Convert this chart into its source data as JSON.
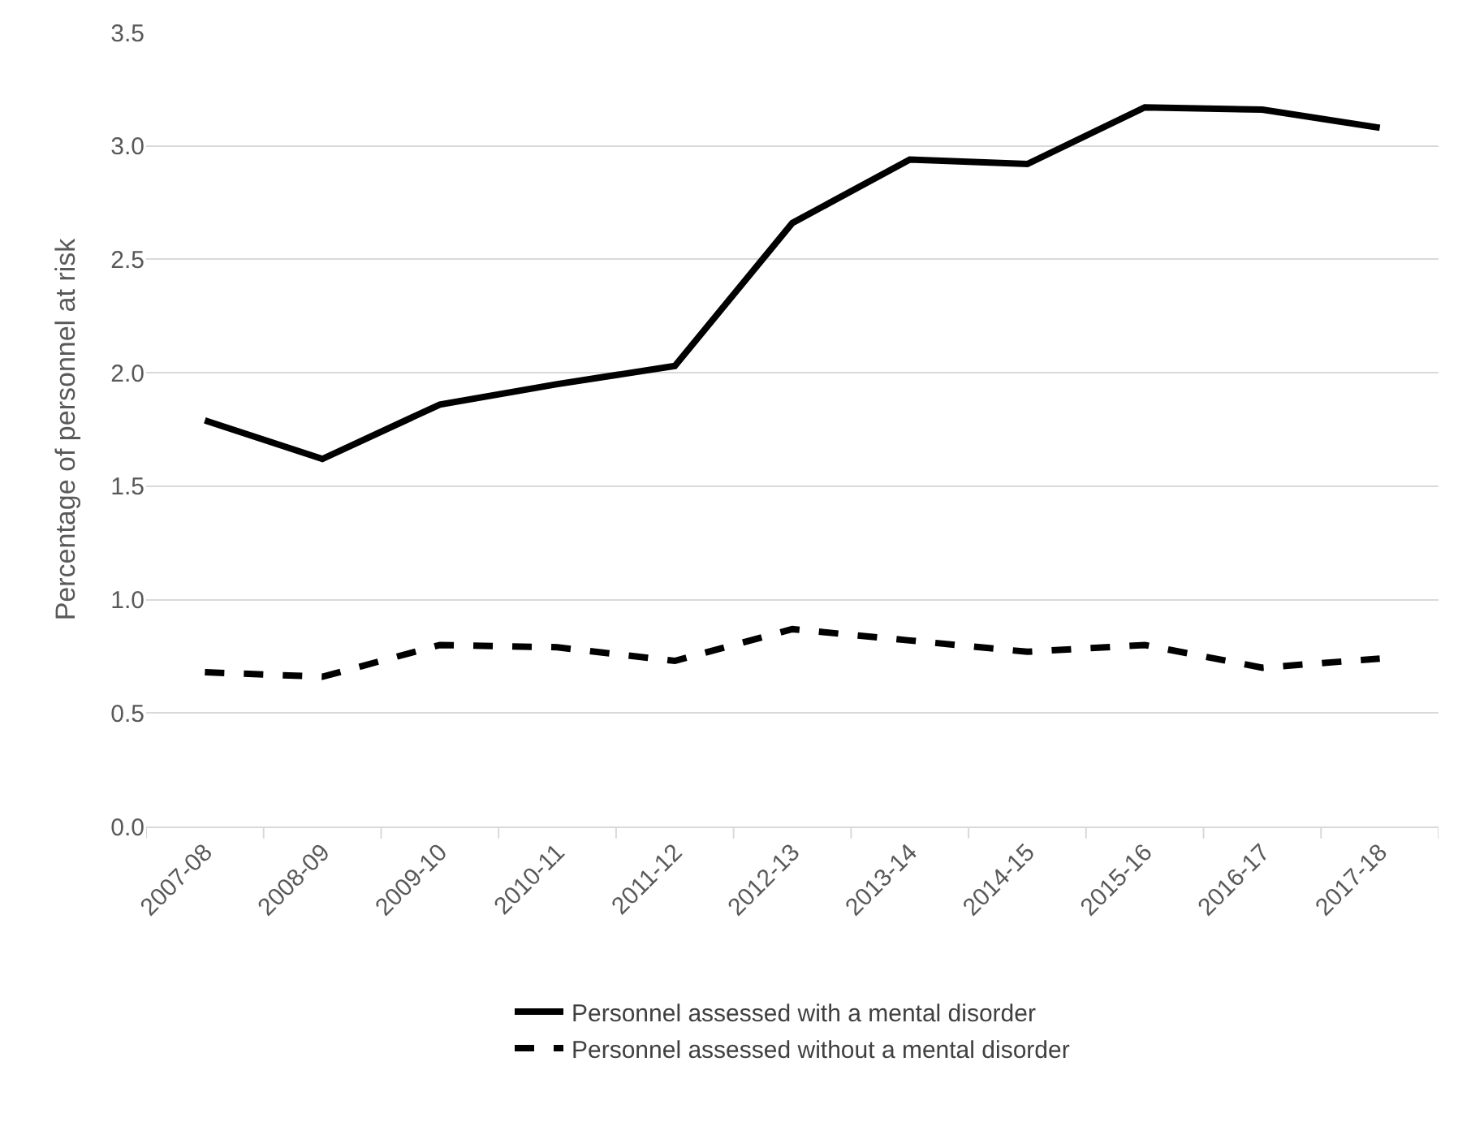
{
  "chart_data": {
    "type": "line",
    "ylabel": "Percentage of personnel at risk",
    "categories": [
      "2007-08",
      "2008-09",
      "2009-10",
      "2010-11",
      "2011-12",
      "2012-13",
      "2013-14",
      "2014-15",
      "2015-16",
      "2016-17",
      "2017-18"
    ],
    "series": [
      {
        "name": "Personnel assessed with a mental disorder",
        "color": "#000000",
        "line_style": "solid",
        "values": [
          1.79,
          1.62,
          1.86,
          1.95,
          2.03,
          2.66,
          2.94,
          2.92,
          3.17,
          3.16,
          3.08
        ]
      },
      {
        "name": "Personnel assessed without a mental disorder",
        "color": "#000000",
        "line_style": "dashed",
        "values": [
          0.68,
          0.66,
          0.8,
          0.79,
          0.73,
          0.87,
          0.82,
          0.77,
          0.8,
          0.7,
          0.74
        ]
      }
    ],
    "ylim": [
      0,
      3.5
    ],
    "yticks": [
      {
        "value": 0,
        "label": "0.0"
      },
      {
        "value": 0.5,
        "label": "0.5"
      },
      {
        "value": 1,
        "label": "1.0"
      },
      {
        "value": 1.5,
        "label": "1.5"
      },
      {
        "value": 2,
        "label": "2.0"
      },
      {
        "value": 2.5,
        "label": "2.5"
      },
      {
        "value": 3,
        "label": "3.0"
      },
      {
        "value": 3.5,
        "label": "3.5"
      }
    ],
    "grid": "y",
    "legend": "bottom",
    "marker": "none"
  }
}
